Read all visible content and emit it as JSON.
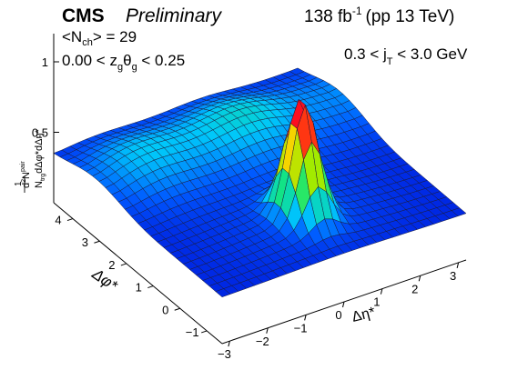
{
  "header": {
    "experiment": "CMS",
    "status": "Preliminary",
    "lumi": "138 fb",
    "lumi_exp": "-1",
    "energy": "(pp 13 TeV)"
  },
  "annotations": {
    "nch_pre": "<N",
    "nch_sub": "ch",
    "nch_post": "> = 29",
    "zg_pre": "0.00 < z",
    "zg_sub1": "g",
    "zg_mid": "θ",
    "zg_sub2": "g",
    "zg_post": " < 0.25",
    "jt_pre": "0.3 < j",
    "jt_sub": "T",
    "jt_post": " < 3.0 GeV"
  },
  "chart_data": {
    "type": "surface",
    "title": "",
    "xlabel": "Δη*",
    "ylabel": "Δφ*",
    "zlabel": "1/N_trg d²N^pair/dΔφ*dΔη*",
    "zlabel_parts": {
      "one": "1",
      "num_base": "d",
      "num_exp": "2",
      "num_N": "N",
      "num_pair": "pair",
      "den_N": "N",
      "den_trg": "trg",
      "den_rest": "dΔφ*dΔη*"
    },
    "xlim": [
      -3.2,
      3.2
    ],
    "ylim": [
      -1.5708,
      4.7124
    ],
    "zlim": [
      0.0,
      1.2
    ],
    "x_ticks": [
      "−3",
      "−2",
      "−1",
      "0",
      "1",
      "2",
      "3"
    ],
    "y_ticks": [
      "−1",
      "0",
      "1",
      "2",
      "3",
      "4"
    ],
    "z_ticks": [
      "0.5",
      "1"
    ],
    "grid": false,
    "features": [
      {
        "name": "near-side peak",
        "x": 0.0,
        "y": 0.0,
        "z": 1.15
      },
      {
        "name": "away-side ridge",
        "y": 3.14,
        "z": 0.52
      },
      {
        "name": "baseline",
        "z": 0.33
      }
    ]
  }
}
